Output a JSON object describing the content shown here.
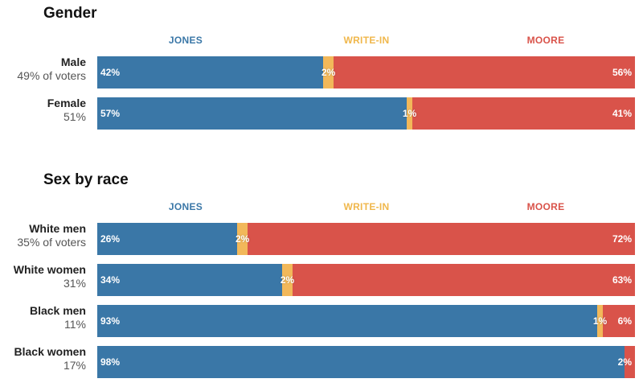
{
  "colors": {
    "jones": "#3a77a7",
    "writein": "#f2b85a",
    "moore": "#d9534a",
    "writein_label": "#f0b74b"
  },
  "chart_data": {
    "type": "bar",
    "stacked": true,
    "orientation": "horizontal",
    "series_order": [
      "JONES",
      "WRITE-IN",
      "MOORE"
    ],
    "sections": [
      {
        "title": "Gender",
        "headers": [
          "JONES",
          "WRITE-IN",
          "MOORE"
        ],
        "rows": [
          {
            "name": "Male",
            "sub": "49% of voters",
            "values": [
              42,
              2,
              56
            ],
            "labels": [
              "42%",
              "2%",
              "56%"
            ]
          },
          {
            "name": "Female",
            "sub": "51%",
            "values": [
              57,
              1,
              41
            ],
            "labels": [
              "57%",
              "1%",
              "41%"
            ]
          }
        ]
      },
      {
        "title": "Sex by race",
        "headers": [
          "JONES",
          "WRITE-IN",
          "MOORE"
        ],
        "rows": [
          {
            "name": "White men",
            "sub": "35% of voters",
            "values": [
              26,
              2,
              72
            ],
            "labels": [
              "26%",
              "2%",
              "72%"
            ]
          },
          {
            "name": "White women",
            "sub": "31%",
            "values": [
              34,
              2,
              63
            ],
            "labels": [
              "34%",
              "2%",
              "63%"
            ]
          },
          {
            "name": "Black men",
            "sub": "11%",
            "values": [
              93,
              1,
              6
            ],
            "labels": [
              "93%",
              "1%",
              "6%"
            ]
          },
          {
            "name": "Black women",
            "sub": "17%",
            "values": [
              98,
              0,
              2
            ],
            "labels": [
              "98%",
              "",
              "2%"
            ]
          }
        ]
      }
    ]
  }
}
